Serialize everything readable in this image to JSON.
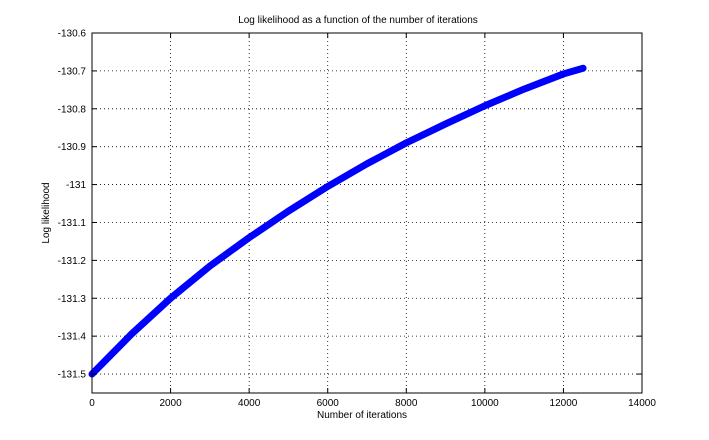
{
  "chart_data": {
    "type": "line",
    "title": "Log likelihood as a function of the number of iterations",
    "xlabel": "Number of iterations",
    "ylabel": "Log likelihood",
    "xlim": [
      0,
      14000
    ],
    "ylim": [
      -131.55,
      -130.6
    ],
    "xticks": [
      0,
      2000,
      4000,
      6000,
      8000,
      10000,
      12000,
      14000
    ],
    "xtick_labels": [
      "0",
      "2000",
      "4000",
      "6000",
      "8000",
      "10000",
      "12000",
      "14000"
    ],
    "yticks": [
      -130.6,
      -130.7,
      -130.8,
      -130.9,
      -131,
      -131.1,
      -131.2,
      -131.3,
      -131.4,
      -131.5
    ],
    "ytick_labels": [
      "-130.6",
      "-130.7",
      "-130.8",
      "-130.9",
      "-131",
      "-131.1",
      "-131.2",
      "-131.3",
      "-131.4",
      "-131.5"
    ],
    "grid": true,
    "series": [
      {
        "color": "#0000ff",
        "x": [
          0,
          1000,
          2000,
          3000,
          4000,
          5000,
          6000,
          7000,
          8000,
          9000,
          10000,
          11000,
          12000,
          12500
        ],
        "y": [
          -131.5,
          -131.395,
          -131.3,
          -131.215,
          -131.14,
          -131.07,
          -131.005,
          -130.945,
          -130.89,
          -130.84,
          -130.792,
          -130.748,
          -130.708,
          -130.693
        ]
      }
    ]
  }
}
